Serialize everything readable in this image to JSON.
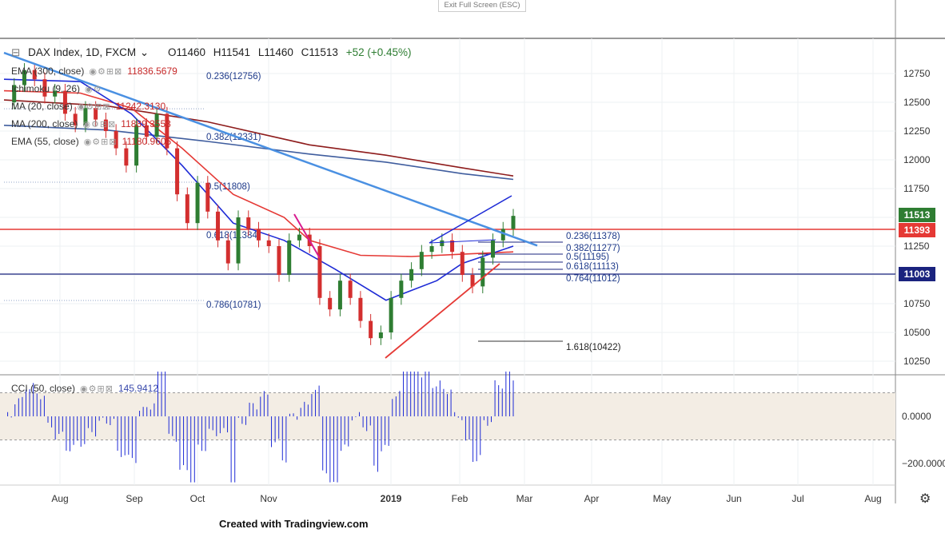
{
  "header": {
    "symbol": "DAX Index, 1D, FXCM",
    "open": "O11460",
    "high": "H11541",
    "low": "L11460",
    "close": "C11513",
    "change": "+52 (+0.45%)"
  },
  "exit_button": "Exit Full Screen (ESC)",
  "footer": "Created with Tradingview.com",
  "indicators": [
    {
      "name": "EMA (300, close)",
      "value": "11836.5679",
      "color": "#c62828"
    },
    {
      "name": "Ichimoku (9, 26)",
      "value": "",
      "color": "#c62828"
    },
    {
      "name": "MA (20, close)",
      "value": "11242.3130",
      "color": "#c62828"
    },
    {
      "name": "MA (200, close)",
      "value": "11889.3553",
      "color": "#c62828"
    },
    {
      "name": "EMA (55, close)",
      "value": "11180.9605",
      "color": "#c62828"
    }
  ],
  "cci": {
    "name": "CCI (50, close)",
    "value": "145.9412"
  },
  "price_tags": [
    {
      "label": "11513",
      "color": "#2e7d32"
    },
    {
      "label": "11393",
      "color": "#e53935"
    },
    {
      "label": "11003",
      "color": "#1a237e"
    }
  ],
  "fib_labels": [
    {
      "label": "0.236(12756)"
    },
    {
      "label": "0.382(12331)"
    },
    {
      "label": "0.5(11808)"
    },
    {
      "label": "0.618(11384)"
    },
    {
      "label": "0.786(10781)"
    },
    {
      "label": "0.236(11378)"
    },
    {
      "label": "0.382(11277)"
    },
    {
      "label": "0.5(11195)"
    },
    {
      "label": "0.618(11113)"
    },
    {
      "label": "0.764(11012)"
    },
    {
      "label": "1.618(10422)"
    }
  ],
  "chart_data": {
    "type": "candlestick",
    "y_axis": {
      "ticks": [
        12750,
        12500,
        12250,
        12000,
        11750,
        11500,
        11250,
        11000,
        10750,
        10500,
        10250
      ]
    },
    "cci_axis": {
      "ticks": [
        "0.0000",
        "−200.0000"
      ]
    },
    "x_axis": {
      "labels": [
        "Aug",
        "Sep",
        "Oct",
        "Nov",
        "2019",
        "Feb",
        "Mar",
        "Apr",
        "May",
        "Jun",
        "Jul",
        "Aug"
      ]
    },
    "ma_series": [
      {
        "name": "MA (200, close)",
        "color": "#3f5d9e",
        "points": [
          [
            0,
            12300
          ],
          [
            0.2,
            12260
          ],
          [
            0.4,
            12160
          ],
          [
            0.6,
            12050
          ],
          [
            0.75,
            11980
          ],
          [
            0.9,
            11880
          ],
          [
            1,
            11830
          ]
        ]
      },
      {
        "name": "EMA (300, close)",
        "color": "#8e1c1c",
        "points": [
          [
            0,
            12520
          ],
          [
            0.2,
            12470
          ],
          [
            0.4,
            12330
          ],
          [
            0.6,
            12130
          ],
          [
            0.75,
            12040
          ],
          [
            0.9,
            11930
          ],
          [
            1,
            11860
          ]
        ]
      },
      {
        "name": "EMA (55, close)",
        "color": "#e53935",
        "points": [
          [
            0,
            12600
          ],
          [
            0.15,
            12580
          ],
          [
            0.25,
            12450
          ],
          [
            0.35,
            12100
          ],
          [
            0.45,
            11700
          ],
          [
            0.55,
            11500
          ],
          [
            0.6,
            11300
          ],
          [
            0.7,
            11170
          ],
          [
            0.8,
            11160
          ],
          [
            0.9,
            11180
          ],
          [
            1,
            11200
          ]
        ]
      },
      {
        "name": "MA (20, close)",
        "color": "#1e2bd6",
        "points": [
          [
            0,
            12700
          ],
          [
            0.15,
            12680
          ],
          [
            0.25,
            12400
          ],
          [
            0.35,
            11950
          ],
          [
            0.45,
            11450
          ],
          [
            0.55,
            11300
          ],
          [
            0.65,
            11050
          ],
          [
            0.75,
            10780
          ],
          [
            0.85,
            10950
          ],
          [
            0.9,
            11100
          ],
          [
            1,
            11250
          ]
        ]
      }
    ],
    "close_series": {
      "x": [
        0,
        0.02,
        0.04,
        0.06,
        0.08,
        0.1,
        0.12,
        0.14,
        0.16,
        0.18,
        0.2,
        0.22,
        0.24,
        0.26,
        0.28,
        0.3,
        0.32,
        0.34,
        0.36,
        0.38,
        0.4,
        0.42,
        0.44,
        0.46,
        0.48,
        0.5,
        0.52,
        0.54,
        0.56,
        0.58,
        0.6,
        0.62,
        0.64,
        0.66,
        0.68,
        0.7,
        0.72,
        0.74,
        0.76,
        0.78,
        0.8,
        0.82,
        0.84,
        0.86,
        0.88,
        0.9,
        0.92,
        0.94,
        0.96,
        0.98,
        1
      ],
      "y": [
        12500,
        12650,
        12780,
        12700,
        12550,
        12600,
        12400,
        12300,
        12450,
        12350,
        12250,
        12100,
        11950,
        12300,
        12200,
        12400,
        12100,
        11700,
        11450,
        11800,
        11550,
        11300,
        11100,
        11500,
        11400,
        11300,
        11250,
        11000,
        11300,
        11350,
        11250,
        10800,
        10700,
        10950,
        10800,
        10600,
        10450,
        10500,
        10800,
        10950,
        11050,
        11200,
        11250,
        11300,
        11200,
        11000,
        10900,
        11150,
        11300,
        11400,
        11513
      ]
    }
  }
}
